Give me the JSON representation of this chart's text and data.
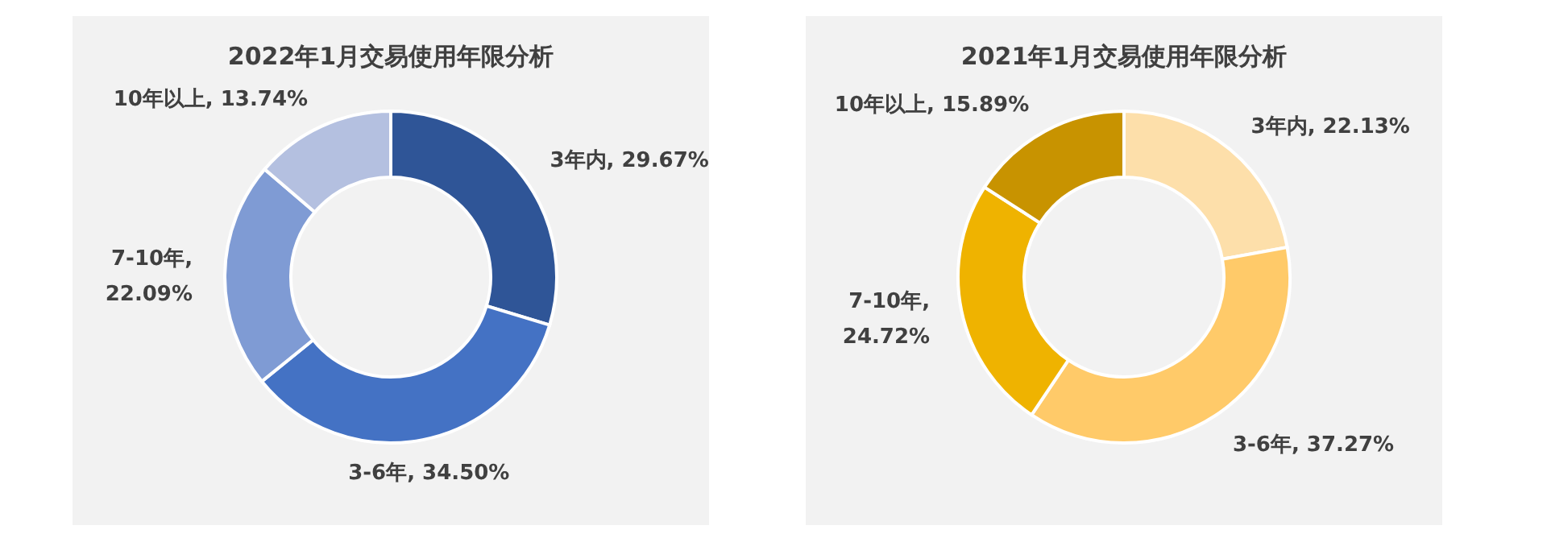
{
  "chart_data": [
    {
      "type": "donut",
      "title": "2022年1月交易使用年限分析",
      "categories": [
        "3年内",
        "3-6年",
        "7-10年",
        "10年以上"
      ],
      "values": [
        29.67,
        34.5,
        22.09,
        13.74
      ],
      "colors": [
        "#2f5597",
        "#4472c4",
        "#7f9bd4",
        "#b4c0e0"
      ],
      "value_labels": [
        ", 29.67%",
        ", 34.50%",
        ",\n22.09%",
        ", 13.74%"
      ]
    },
    {
      "type": "donut",
      "title": "2021年1月交易使用年限分析",
      "categories": [
        "3年内",
        "3-6年",
        "7-10年",
        "10年以上"
      ],
      "values": [
        22.13,
        37.27,
        24.72,
        15.89
      ],
      "colors": [
        "#fddfaa",
        "#ffca69",
        "#efb300",
        "#c89300"
      ],
      "value_labels": [
        ", 22.13%",
        ", 37.27%",
        ",\n24.72%",
        ", 15.89%"
      ]
    }
  ]
}
